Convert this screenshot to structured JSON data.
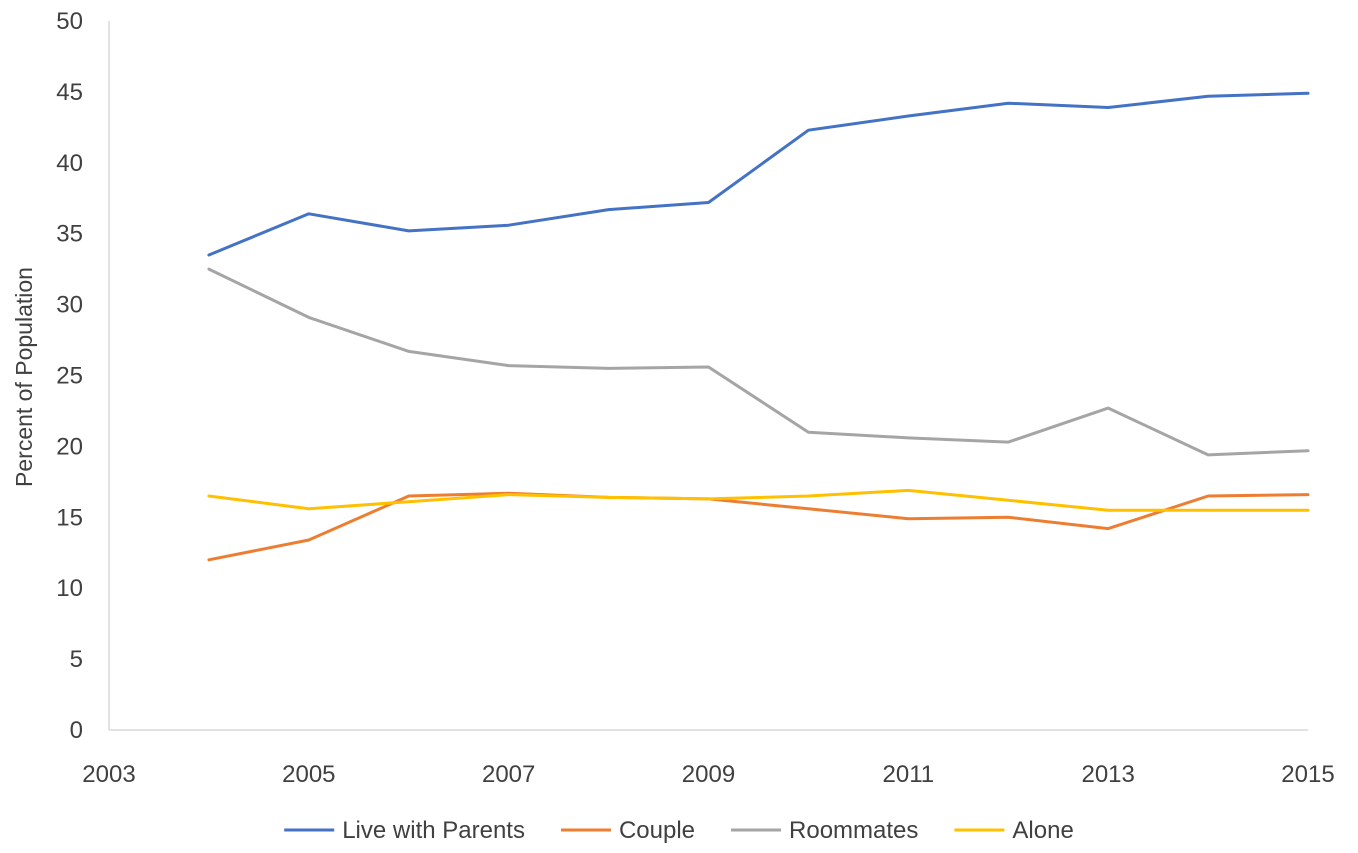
{
  "chart_data": {
    "type": "line",
    "title": "",
    "xlabel": "",
    "ylabel": "Percent of Population",
    "xlim": [
      2003,
      2015
    ],
    "ylim": [
      0,
      50
    ],
    "x_ticks": [
      2003,
      2005,
      2007,
      2009,
      2011,
      2013,
      2015
    ],
    "y_ticks": [
      0,
      5,
      10,
      15,
      20,
      25,
      30,
      35,
      40,
      45,
      50
    ],
    "grid": false,
    "legend_position": "bottom",
    "x": [
      2004,
      2005,
      2006,
      2007,
      2008,
      2009,
      2010,
      2011,
      2012,
      2013,
      2014,
      2015
    ],
    "series": [
      {
        "name": "Live with Parents",
        "color": "#4472C4",
        "values": [
          33.5,
          36.4,
          35.2,
          35.6,
          36.7,
          37.2,
          42.3,
          43.3,
          44.2,
          43.9,
          44.7,
          44.9
        ]
      },
      {
        "name": "Couple",
        "color": "#ED7D31",
        "values": [
          12.0,
          13.4,
          16.5,
          16.7,
          16.4,
          16.3,
          15.6,
          14.9,
          15.0,
          14.2,
          16.5,
          16.6
        ]
      },
      {
        "name": "Roommates",
        "color": "#A5A5A5",
        "values": [
          32.5,
          29.1,
          26.7,
          25.7,
          25.5,
          25.6,
          21.0,
          20.6,
          20.3,
          22.7,
          19.4,
          19.7
        ]
      },
      {
        "name": "Alone",
        "color": "#FFC000",
        "values": [
          16.5,
          15.6,
          16.1,
          16.6,
          16.4,
          16.3,
          16.5,
          16.9,
          16.2,
          15.5,
          15.5,
          15.5
        ]
      }
    ]
  }
}
